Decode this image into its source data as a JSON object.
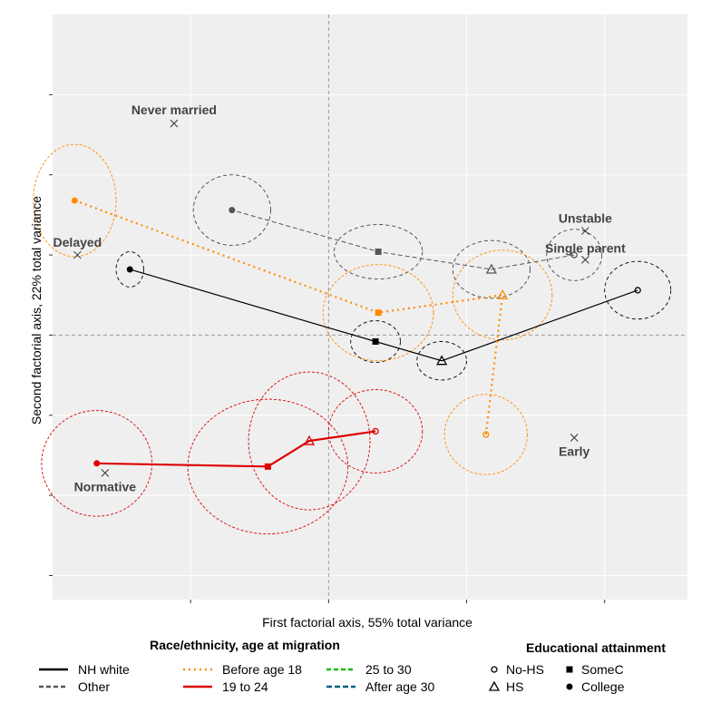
{
  "chart_data": {
    "type": "scatter",
    "xlabel": "First factorial axis, 55% total variance",
    "ylabel": "Second factorial axis, 22% total variance",
    "xlim": [
      -1.0,
      1.3
    ],
    "ylim": [
      -1.65,
      2.0
    ],
    "grid": true,
    "legend_position": "bottom",
    "reference_lines": {
      "x": 0,
      "y": 0
    },
    "colors": {
      "nh_white": "#000000",
      "other": "#555555",
      "before_18": "#ff8c00",
      "age_19_24": "#dd0000",
      "age_25_30": "#00c000",
      "after_30": "#006080",
      "panel": "#efefef",
      "label": "#444444"
    },
    "categories": [
      {
        "label": "Never married",
        "x": -0.56,
        "y": 1.32
      },
      {
        "label": "Delayed",
        "x": -0.91,
        "y": 0.5
      },
      {
        "label": "Unstable",
        "x": 0.93,
        "y": 0.65
      },
      {
        "label": "Single parent",
        "x": 0.93,
        "y": 0.47
      },
      {
        "label": "Early",
        "x": 0.89,
        "y": -0.64
      },
      {
        "label": "Normative",
        "x": -0.81,
        "y": -0.86
      }
    ],
    "series": [
      {
        "name": "NH white",
        "key": "nh_white",
        "points": [
          {
            "level": "No-HS",
            "x": 1.12,
            "y": 0.28,
            "rx": 0.12,
            "ry": 0.18
          },
          {
            "level": "HS",
            "x": 0.41,
            "y": -0.16,
            "rx": 0.09,
            "ry": 0.12
          },
          {
            "level": "SomeC",
            "x": 0.17,
            "y": -0.04,
            "rx": 0.09,
            "ry": 0.13
          },
          {
            "level": "College",
            "x": -0.72,
            "y": 0.41,
            "rx": 0.05,
            "ry": 0.11
          }
        ]
      },
      {
        "name": "Other",
        "key": "other",
        "points": [
          {
            "level": "No-HS",
            "x": 0.89,
            "y": 0.5,
            "rx": 0.1,
            "ry": 0.16
          },
          {
            "level": "HS",
            "x": 0.59,
            "y": 0.41,
            "rx": 0.14,
            "ry": 0.18
          },
          {
            "level": "SomeC",
            "x": 0.18,
            "y": 0.52,
            "rx": 0.16,
            "ry": 0.17
          },
          {
            "level": "College",
            "x": -0.35,
            "y": 0.78,
            "rx": 0.14,
            "ry": 0.22
          }
        ]
      },
      {
        "name": "Before age 18",
        "key": "before_18",
        "points": [
          {
            "level": "No-HS",
            "x": 0.57,
            "y": -0.62,
            "rx": 0.15,
            "ry": 0.25
          },
          {
            "level": "HS",
            "x": 0.63,
            "y": 0.25,
            "rx": 0.18,
            "ry": 0.28
          },
          {
            "level": "SomeC",
            "x": 0.18,
            "y": 0.14,
            "rx": 0.2,
            "ry": 0.3
          },
          {
            "level": "College",
            "x": -0.92,
            "y": 0.84,
            "rx": 0.15,
            "ry": 0.35
          }
        ]
      },
      {
        "name": "19 to 24",
        "key": "age_19_24",
        "points": [
          {
            "level": "No-HS",
            "x": 0.17,
            "y": -0.6,
            "rx": 0.17,
            "ry": 0.26
          },
          {
            "level": "HS",
            "x": -0.07,
            "y": -0.66,
            "rx": 0.22,
            "ry": 0.43
          },
          {
            "level": "SomeC",
            "x": -0.22,
            "y": -0.82,
            "rx": 0.29,
            "ry": 0.42
          },
          {
            "level": "College",
            "x": -0.84,
            "y": -0.8,
            "rx": 0.2,
            "ry": 0.33
          }
        ]
      },
      {
        "name": "25 to 30",
        "key": "age_25_30",
        "points": []
      },
      {
        "name": "After age 30",
        "key": "after_30",
        "points": []
      }
    ],
    "legend": {
      "race_title": "Race/ethnicity, age at migration",
      "race_items": [
        "NH white",
        "Other",
        "Before age 18",
        "19 to 24",
        "25 to 30",
        "After age 30"
      ],
      "edu_title": "Educational attainment",
      "edu_items": [
        "No-HS",
        "SomeC",
        "HS",
        "College"
      ]
    }
  }
}
